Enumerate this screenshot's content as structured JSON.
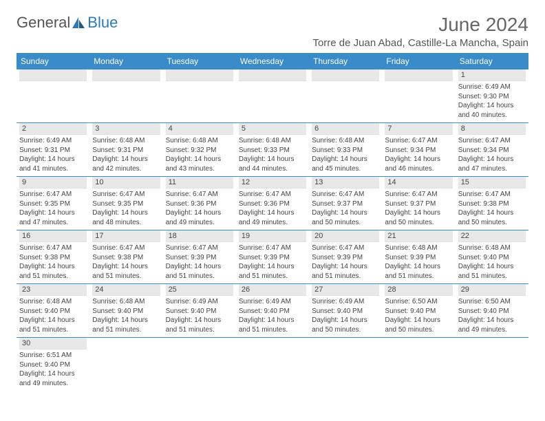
{
  "logo": {
    "part1": "General",
    "part2": "Blue"
  },
  "title": "June 2024",
  "location": "Torre de Juan Abad, Castille-La Mancha, Spain",
  "dayHeaders": [
    "Sunday",
    "Monday",
    "Tuesday",
    "Wednesday",
    "Thursday",
    "Friday",
    "Saturday"
  ],
  "colors": {
    "headerBg": "#3a8bc9",
    "accent": "#2a7ab8"
  },
  "weeks": [
    [
      null,
      null,
      null,
      null,
      null,
      null,
      {
        "n": "1",
        "r": "6:49 AM",
        "s": "9:30 PM",
        "d": "14 hours and 40 minutes."
      }
    ],
    [
      {
        "n": "2",
        "r": "6:49 AM",
        "s": "9:31 PM",
        "d": "14 hours and 41 minutes."
      },
      {
        "n": "3",
        "r": "6:48 AM",
        "s": "9:31 PM",
        "d": "14 hours and 42 minutes."
      },
      {
        "n": "4",
        "r": "6:48 AM",
        "s": "9:32 PM",
        "d": "14 hours and 43 minutes."
      },
      {
        "n": "5",
        "r": "6:48 AM",
        "s": "9:33 PM",
        "d": "14 hours and 44 minutes."
      },
      {
        "n": "6",
        "r": "6:48 AM",
        "s": "9:33 PM",
        "d": "14 hours and 45 minutes."
      },
      {
        "n": "7",
        "r": "6:47 AM",
        "s": "9:34 PM",
        "d": "14 hours and 46 minutes."
      },
      {
        "n": "8",
        "r": "6:47 AM",
        "s": "9:34 PM",
        "d": "14 hours and 47 minutes."
      }
    ],
    [
      {
        "n": "9",
        "r": "6:47 AM",
        "s": "9:35 PM",
        "d": "14 hours and 47 minutes."
      },
      {
        "n": "10",
        "r": "6:47 AM",
        "s": "9:35 PM",
        "d": "14 hours and 48 minutes."
      },
      {
        "n": "11",
        "r": "6:47 AM",
        "s": "9:36 PM",
        "d": "14 hours and 49 minutes."
      },
      {
        "n": "12",
        "r": "6:47 AM",
        "s": "9:36 PM",
        "d": "14 hours and 49 minutes."
      },
      {
        "n": "13",
        "r": "6:47 AM",
        "s": "9:37 PM",
        "d": "14 hours and 50 minutes."
      },
      {
        "n": "14",
        "r": "6:47 AM",
        "s": "9:37 PM",
        "d": "14 hours and 50 minutes."
      },
      {
        "n": "15",
        "r": "6:47 AM",
        "s": "9:38 PM",
        "d": "14 hours and 50 minutes."
      }
    ],
    [
      {
        "n": "16",
        "r": "6:47 AM",
        "s": "9:38 PM",
        "d": "14 hours and 51 minutes."
      },
      {
        "n": "17",
        "r": "6:47 AM",
        "s": "9:38 PM",
        "d": "14 hours and 51 minutes."
      },
      {
        "n": "18",
        "r": "6:47 AM",
        "s": "9:39 PM",
        "d": "14 hours and 51 minutes."
      },
      {
        "n": "19",
        "r": "6:47 AM",
        "s": "9:39 PM",
        "d": "14 hours and 51 minutes."
      },
      {
        "n": "20",
        "r": "6:47 AM",
        "s": "9:39 PM",
        "d": "14 hours and 51 minutes."
      },
      {
        "n": "21",
        "r": "6:48 AM",
        "s": "9:39 PM",
        "d": "14 hours and 51 minutes."
      },
      {
        "n": "22",
        "r": "6:48 AM",
        "s": "9:40 PM",
        "d": "14 hours and 51 minutes."
      }
    ],
    [
      {
        "n": "23",
        "r": "6:48 AM",
        "s": "9:40 PM",
        "d": "14 hours and 51 minutes."
      },
      {
        "n": "24",
        "r": "6:48 AM",
        "s": "9:40 PM",
        "d": "14 hours and 51 minutes."
      },
      {
        "n": "25",
        "r": "6:49 AM",
        "s": "9:40 PM",
        "d": "14 hours and 51 minutes."
      },
      {
        "n": "26",
        "r": "6:49 AM",
        "s": "9:40 PM",
        "d": "14 hours and 51 minutes."
      },
      {
        "n": "27",
        "r": "6:49 AM",
        "s": "9:40 PM",
        "d": "14 hours and 50 minutes."
      },
      {
        "n": "28",
        "r": "6:50 AM",
        "s": "9:40 PM",
        "d": "14 hours and 50 minutes."
      },
      {
        "n": "29",
        "r": "6:50 AM",
        "s": "9:40 PM",
        "d": "14 hours and 49 minutes."
      }
    ],
    [
      {
        "n": "30",
        "r": "6:51 AM",
        "s": "9:40 PM",
        "d": "14 hours and 49 minutes."
      },
      null,
      null,
      null,
      null,
      null,
      null
    ]
  ],
  "labels": {
    "sunrise": "Sunrise:",
    "sunset": "Sunset:",
    "daylight": "Daylight:"
  }
}
